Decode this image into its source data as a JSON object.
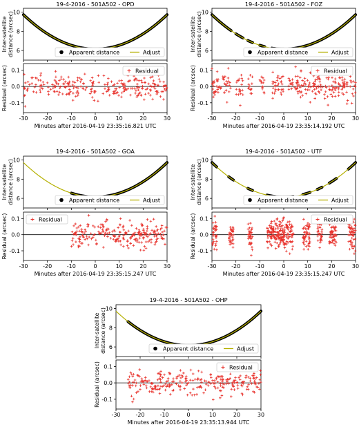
{
  "chart_data": [
    {
      "type": "line",
      "station": "OPD",
      "title": "19-4-2016 - 501A502 - OPD",
      "xlabel": "Minutes after 2016-04-19 23:35:16.821 UTC",
      "top": {
        "ylabel_lines": [
          "Inter-satellite",
          "distance (arcsec)"
        ],
        "xlim": [
          -30,
          30
        ],
        "ylim": [
          5.0,
          10.4
        ],
        "yticks": [
          6,
          8,
          10
        ],
        "fit": {
          "name": "Adjust",
          "min_x": 0,
          "min_y": 6.15,
          "a": 0.00398,
          "x_range": [
            -30,
            30
          ],
          "color": "#b5b000"
        },
        "observed": {
          "name": "Apparent distance",
          "segments": [
            [
              -30,
              30
            ]
          ]
        },
        "legend": "lower-right"
      },
      "bottom": {
        "ylabel": "Residual (arcsec)",
        "xlim": [
          -30,
          30
        ],
        "ylim": [
          -0.16,
          0.14
        ],
        "xticks": [
          -30,
          -20,
          -10,
          0,
          10,
          20,
          30
        ],
        "yticks": [
          -0.1,
          0.0,
          0.1
        ],
        "residual": {
          "name": "Residual",
          "segments": [
            [
              -30,
              30
            ]
          ],
          "spread": 0.035,
          "count": 260,
          "color": "#e8312b"
        },
        "legend": "top-right"
      }
    },
    {
      "type": "line",
      "station": "FOZ",
      "title": "19-4-2016 - 501A502 - FOZ",
      "xlabel": "Minutes after 2016-04-19 23:35:14.192 UTC",
      "top": {
        "ylabel_lines": [
          "Inter-satellite",
          "distance (arcsec)"
        ],
        "xlim": [
          -30,
          30
        ],
        "ylim": [
          5.0,
          10.4
        ],
        "yticks": [
          6,
          8,
          10
        ],
        "fit": {
          "name": "Adjust",
          "min_x": 0,
          "min_y": 6.15,
          "a": 0.00398,
          "x_range": [
            -30,
            30
          ],
          "color": "#b5b000"
        },
        "observed": {
          "name": "Apparent distance",
          "segments": [
            [
              -30,
              -22
            ],
            [
              -20,
              -17
            ],
            [
              -15,
              -13
            ],
            [
              -10,
              -8
            ],
            [
              -5,
              0
            ],
            [
              2,
              30
            ]
          ]
        },
        "legend": "lower-right"
      },
      "bottom": {
        "ylabel": "Residual (arcsec)",
        "xlim": [
          -30,
          30
        ],
        "ylim": [
          -0.16,
          0.14
        ],
        "xticks": [
          -30,
          -20,
          -10,
          0,
          10,
          20,
          30
        ],
        "yticks": [
          -0.1,
          0.0,
          0.1
        ],
        "residual": {
          "name": "Residual",
          "segments": [
            [
              -30,
              -22
            ],
            [
              -20,
              -17
            ],
            [
              -15,
              -13
            ],
            [
              -10,
              -8
            ],
            [
              -5,
              0
            ],
            [
              2,
              30
            ]
          ],
          "spread": 0.04,
          "count": 300,
          "color": "#e8312b"
        },
        "legend": "top-right"
      }
    },
    {
      "type": "line",
      "station": "GOA",
      "title": "19-4-2016 - 501A502 - GOA",
      "xlabel": "Minutes after 2016-04-19 23:35:15.247 UTC",
      "top": {
        "ylabel_lines": [
          "Inter-satellite",
          "distance (arcsec)"
        ],
        "xlim": [
          -30,
          30
        ],
        "ylim": [
          5.0,
          10.4
        ],
        "yticks": [
          6,
          8,
          10
        ],
        "fit": {
          "name": "Adjust",
          "min_x": 0,
          "min_y": 6.15,
          "a": 0.00398,
          "x_range": [
            -30,
            30
          ],
          "color": "#b5b000"
        },
        "observed": {
          "name": "Apparent distance",
          "segments": [
            [
              -10,
              30
            ]
          ]
        },
        "legend": "lower-right"
      },
      "bottom": {
        "ylabel": "Residual (arcsec)",
        "xlim": [
          -30,
          30
        ],
        "ylim": [
          -0.16,
          0.14
        ],
        "xticks": [
          -30,
          -20,
          -10,
          0,
          10,
          20,
          30
        ],
        "yticks": [
          -0.1,
          0.0,
          0.1
        ],
        "residual": {
          "name": "Residual",
          "segments": [
            [
              -10,
              30
            ]
          ],
          "spread": 0.04,
          "count": 230,
          "color": "#e8312b"
        },
        "legend": "top-left"
      }
    },
    {
      "type": "line",
      "station": "UTF",
      "title": "19-4-2016 - 501A502 - UTF",
      "xlabel": "Minutes after 2016-04-19 23:35:15.247 UTC",
      "top": {
        "ylabel_lines": [
          "Inter-satellite",
          "distance (arcsec)"
        ],
        "xlim": [
          -30,
          30
        ],
        "ylim": [
          5.0,
          10.4
        ],
        "yticks": [
          6,
          8,
          10
        ],
        "fit": {
          "name": "Adjust",
          "min_x": 0,
          "min_y": 6.15,
          "a": 0.00398,
          "x_range": [
            -30,
            30
          ],
          "color": "#b5b000"
        },
        "observed": {
          "name": "Apparent distance",
          "segments": [
            [
              -30,
              -28
            ],
            [
              -23,
              -21
            ],
            [
              -15,
              -13
            ],
            [
              -7,
              4
            ],
            [
              8,
              11
            ],
            [
              14,
              16
            ],
            [
              19,
              22
            ],
            [
              27,
              30
            ]
          ]
        },
        "legend": "lower-right"
      },
      "bottom": {
        "ylabel": "Residual (arcsec)",
        "xlim": [
          -30,
          30
        ],
        "ylim": [
          -0.16,
          0.14
        ],
        "xticks": [
          -30,
          -20,
          -10,
          0,
          10,
          20,
          30
        ],
        "yticks": [
          -0.1,
          0.0,
          0.1
        ],
        "residual": {
          "name": "Residual",
          "segments": [
            [
              -30,
              -28
            ],
            [
              -23,
              -21
            ],
            [
              -15,
              -13
            ],
            [
              -7,
              4
            ],
            [
              8,
              11
            ],
            [
              14,
              16
            ],
            [
              19,
              22
            ],
            [
              27,
              30
            ]
          ],
          "spread": 0.045,
          "count": 480,
          "color": "#e8312b"
        },
        "legend": "top-right"
      }
    },
    {
      "type": "line",
      "station": "OHP",
      "title": "19-4-2016 - 501A502 - OHP",
      "xlabel": "Minutes after 2016-04-19 23:35:13.944 UTC",
      "top": {
        "ylabel_lines": [
          "Inter-satellite",
          "distance (arcsec)"
        ],
        "xlim": [
          -30,
          30
        ],
        "ylim": [
          5.0,
          10.4
        ],
        "yticks": [
          6,
          8,
          10
        ],
        "fit": {
          "name": "Adjust",
          "min_x": 0,
          "min_y": 6.15,
          "a": 0.00398,
          "x_range": [
            -30,
            30
          ],
          "color": "#b5b000"
        },
        "observed": {
          "name": "Apparent distance",
          "segments": [
            [
              -25,
              30
            ]
          ]
        },
        "legend": "lower-right"
      },
      "bottom": {
        "ylabel": "Residual (arcsec)",
        "xlim": [
          -30,
          30
        ],
        "ylim": [
          -0.16,
          0.14
        ],
        "xticks": [
          -30,
          -20,
          -10,
          0,
          10,
          20,
          30
        ],
        "yticks": [
          -0.1,
          0.0,
          0.1
        ],
        "residual": {
          "name": "Residual",
          "segments": [
            [
              -25,
              30
            ]
          ],
          "spread": 0.035,
          "count": 260,
          "color": "#e8312b"
        },
        "legend": "top-right"
      }
    }
  ]
}
